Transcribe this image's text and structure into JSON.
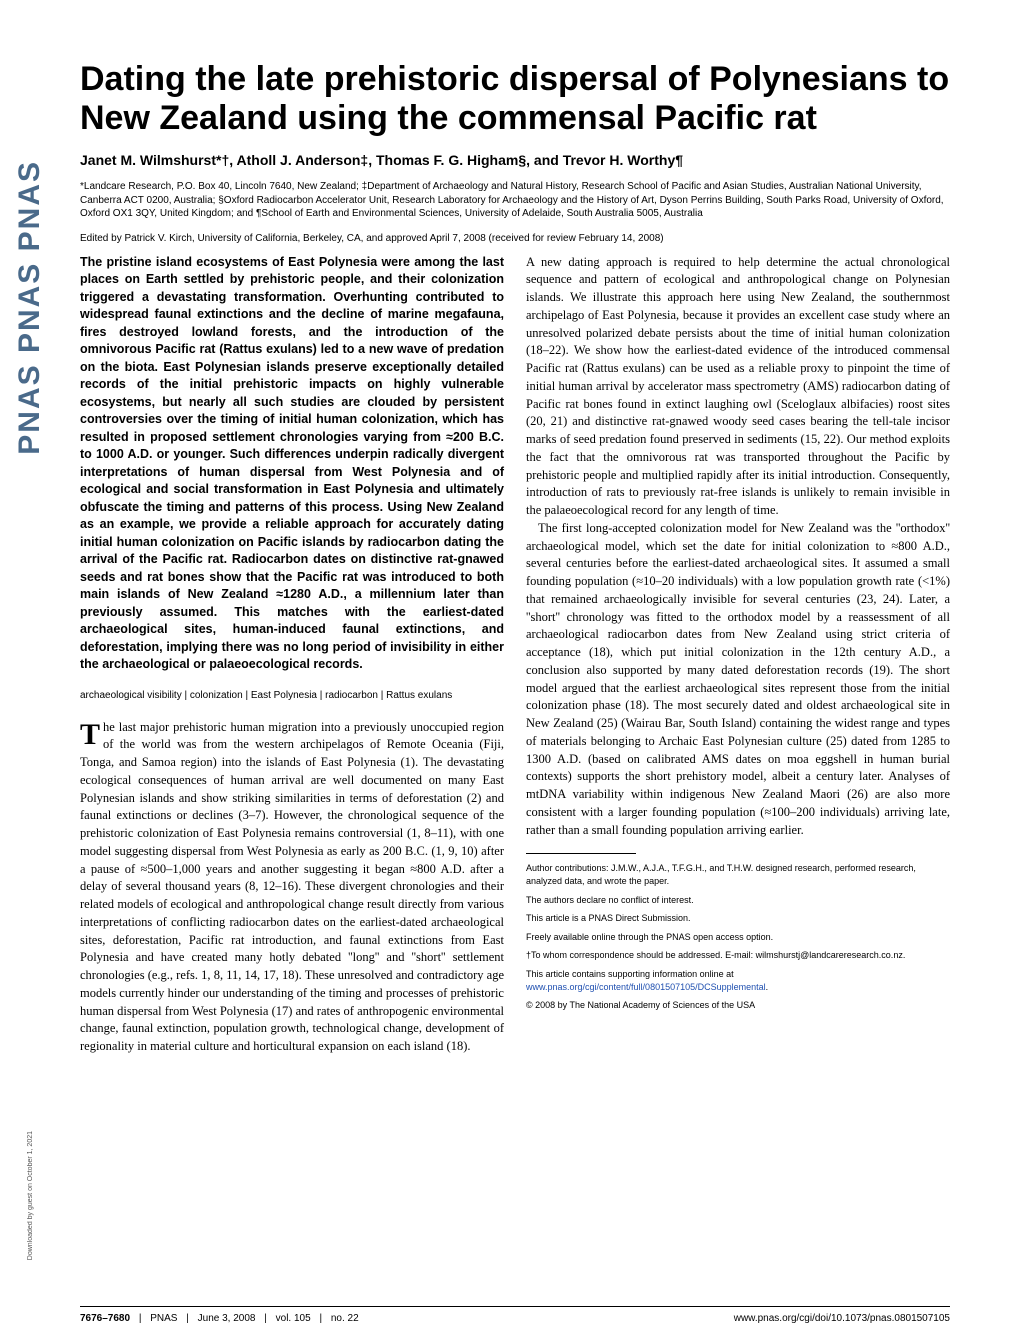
{
  "journal": {
    "logo_text": "PNAS  PNAS  PNAS",
    "download_note": "Downloaded by guest on October 1, 2021"
  },
  "title": "Dating the late prehistoric dispersal of Polynesians to New Zealand using the commensal Pacific rat",
  "authors": "Janet M. Wilmshurst*†, Atholl J. Anderson‡, Thomas F. G. Higham§, and Trevor H. Worthy¶",
  "affiliations": "*Landcare Research, P.O. Box 40, Lincoln 7640, New Zealand; ‡Department of Archaeology and Natural History, Research School of Pacific and Asian Studies, Australian National University, Canberra ACT 0200, Australia; §Oxford Radiocarbon Accelerator Unit, Research Laboratory for Archaeology and the History of Art, Dyson Perrins Building, South Parks Road, University of Oxford, Oxford OX1 3QY, United Kingdom; and ¶School of Earth and Environmental Sciences, University of Adelaide, South Australia 5005, Australia",
  "edited_by": "Edited by Patrick V. Kirch, University of California, Berkeley, CA, and approved April 7, 2008 (received for review February 14, 2008)",
  "abstract": "The pristine island ecosystems of East Polynesia were among the last places on Earth settled by prehistoric people, and their colonization triggered a devastating transformation. Overhunting contributed to widespread faunal extinctions and the decline of marine megafauna, fires destroyed lowland forests, and the introduction of the omnivorous Pacific rat (Rattus exulans) led to a new wave of predation on the biota. East Polynesian islands preserve exceptionally detailed records of the initial prehistoric impacts on highly vulnerable ecosystems, but nearly all such studies are clouded by persistent controversies over the timing of initial human colonization, which has resulted in proposed settlement chronologies varying from ≈200 B.C. to 1000 A.D. or younger. Such differences underpin radically divergent interpretations of human dispersal from West Polynesia and of ecological and social transformation in East Polynesia and ultimately obfuscate the timing and patterns of this process. Using New Zealand as an example, we provide a reliable approach for accurately dating initial human colonization on Pacific islands by radiocarbon dating the arrival of the Pacific rat. Radiocarbon dates on distinctive rat-gnawed seeds and rat bones show that the Pacific rat was introduced to both main islands of New Zealand ≈1280 A.D., a millennium later than previously assumed. This matches with the earliest-dated archaeological sites, human-induced faunal extinctions, and deforestation, implying there was no long period of invisibility in either the archaeological or palaeoecological records.",
  "keywords": "archaeological visibility | colonization | East Polynesia | radiocarbon | Rattus exulans",
  "intro_para1": "The last major prehistoric human migration into a previously unoccupied region of the world was from the western archipelagos of Remote Oceania (Fiji, Tonga, and Samoa region) into the islands of East Polynesia (1). The devastating ecological consequences of human arrival are well documented on many East Polynesian islands and show striking similarities in terms of deforestation (2) and faunal extinctions or declines (3–7). However, the chronological sequence of the prehistoric colonization of East Polynesia remains controversial (1, 8–11), with one model suggesting dispersal from West Polynesia as early as 200 B.C. (1, 9, 10) after a pause of ≈500–1,000 years and another suggesting it began ≈800 A.D. after a delay of several thousand years (8, 12–16). These divergent chronologies and their related models of ecological and anthropological change result directly from various interpretations of conflicting radiocarbon dates on the earliest-dated archaeological sites, deforestation, Pacific rat introduction, and faunal extinctions from East Polynesia and have created many hotly debated ''long'' and ''short'' settlement chronologies (e.g., refs. 1, 8, 11, 14, 17, 18). These unresolved and contradictory age models currently hinder our understanding of the timing and processes of prehistoric human dispersal from West Polynesia (17) and rates of anthropogenic environmental change, faunal extinction, population growth, technological change, development of regionality in material culture and horticultural expansion on each island (18).",
  "col2_para1": "A new dating approach is required to help determine the actual chronological sequence and pattern of ecological and anthropological change on Polynesian islands. We illustrate this approach here using New Zealand, the southernmost archipelago of East Polynesia, because it provides an excellent case study where an unresolved polarized debate persists about the time of initial human colonization (18–22). We show how the earliest-dated evidence of the introduced commensal Pacific rat (Rattus exulans) can be used as a reliable proxy to pinpoint the time of initial human arrival by accelerator mass spectrometry (AMS) radiocarbon dating of Pacific rat bones found in extinct laughing owl (Sceloglaux albifacies) roost sites (20, 21) and distinctive rat-gnawed woody seed cases bearing the tell-tale incisor marks of seed predation found preserved in sediments (15, 22). Our method exploits the fact that the omnivorous rat was transported throughout the Pacific by prehistoric people and multiplied rapidly after its initial introduction. Consequently, introduction of rats to previously rat-free islands is unlikely to remain invisible in the palaeoecological record for any length of time.",
  "col2_para2": "The first long-accepted colonization model for New Zealand was the ''orthodox'' archaeological model, which set the date for initial colonization to ≈800 A.D., several centuries before the earliest-dated archaeological sites. It assumed a small founding population (≈10–20 individuals) with a low population growth rate (<1%) that remained archaeologically invisible for several centuries (23, 24). Later, a ''short'' chronology was fitted to the orthodox model by a reassessment of all archaeological radiocarbon dates from New Zealand using strict criteria of acceptance (18), which put initial colonization in the 12th century A.D., a conclusion also supported by many dated deforestation records (19). The short model argued that the earliest archaeological sites represent those from the initial colonization phase (18). The most securely dated and oldest archaeological site in New Zealand (25) (Wairau Bar, South Island) containing the widest range and types of materials belonging to Archaic East Polynesian culture (25) dated from 1285 to 1300 A.D. (based on calibrated AMS dates on moa eggshell in human burial contexts) supports the short prehistory model, albeit a century later. Analyses of mtDNA variability within indigenous New Zealand Maori (26) are also more consistent with a larger founding population (≈100–200 individuals) arriving late, rather than a small founding population arriving earlier.",
  "footnotes": {
    "contributions": "Author contributions: J.M.W., A.J.A., T.F.G.H., and T.H.W. designed research, performed research, analyzed data, and wrote the paper.",
    "conflict": "The authors declare no conflict of interest.",
    "submission": "This article is a PNAS Direct Submission.",
    "open_access": "Freely available online through the PNAS open access option.",
    "correspondence": "†To whom correspondence should be addressed. E-mail: wilmshurstj@landcareresearch.co.nz.",
    "supporting_info_prefix": "This article contains supporting information online at ",
    "supporting_info_link": "www.pnas.org/cgi/content/full/0801507105/DCSupplemental",
    "supporting_info_suffix": ".",
    "copyright": "© 2008 by The National Academy of Sciences of the USA"
  },
  "footer": {
    "pages": "7676–7680",
    "journal": "PNAS",
    "date": "June 3, 2008",
    "volume": "vol. 105",
    "issue": "no. 22",
    "doi": "www.pnas.org/cgi/doi/10.1073/pnas.0801507105"
  },
  "colors": {
    "logo": "#4a6a8a",
    "link": "#2050b0"
  }
}
